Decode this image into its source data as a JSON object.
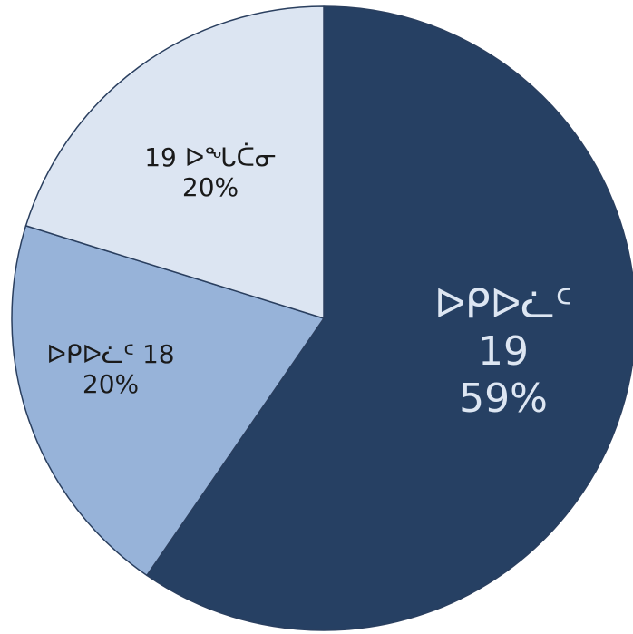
{
  "chart_data": {
    "type": "pie",
    "title": "",
    "slices": [
      {
        "label": "ᐅᑭᐅᓛᑦ 19",
        "line1": "ᐅᑭᐅᓛᑦ",
        "line2": "19",
        "percent_label": "59%",
        "value": 59,
        "color": "#264063"
      },
      {
        "label": "ᐅᑭᐅᓛᑦ 18",
        "line1": "ᐅᑭᐅᓛᑦ 18",
        "line2": "",
        "percent_label": "20%",
        "value": 20,
        "color": "#97b3d9"
      },
      {
        "label": "19 ᐅᖓᑖᓂ",
        "line1": "19 ᐅᖓᑖᓂ",
        "line2": "",
        "percent_label": "20%",
        "value": 20,
        "color": "#dce5f2"
      }
    ],
    "start_angle_deg": 0,
    "direction": "clockwise",
    "legend": "none",
    "border_color": "#2a3f5f"
  }
}
